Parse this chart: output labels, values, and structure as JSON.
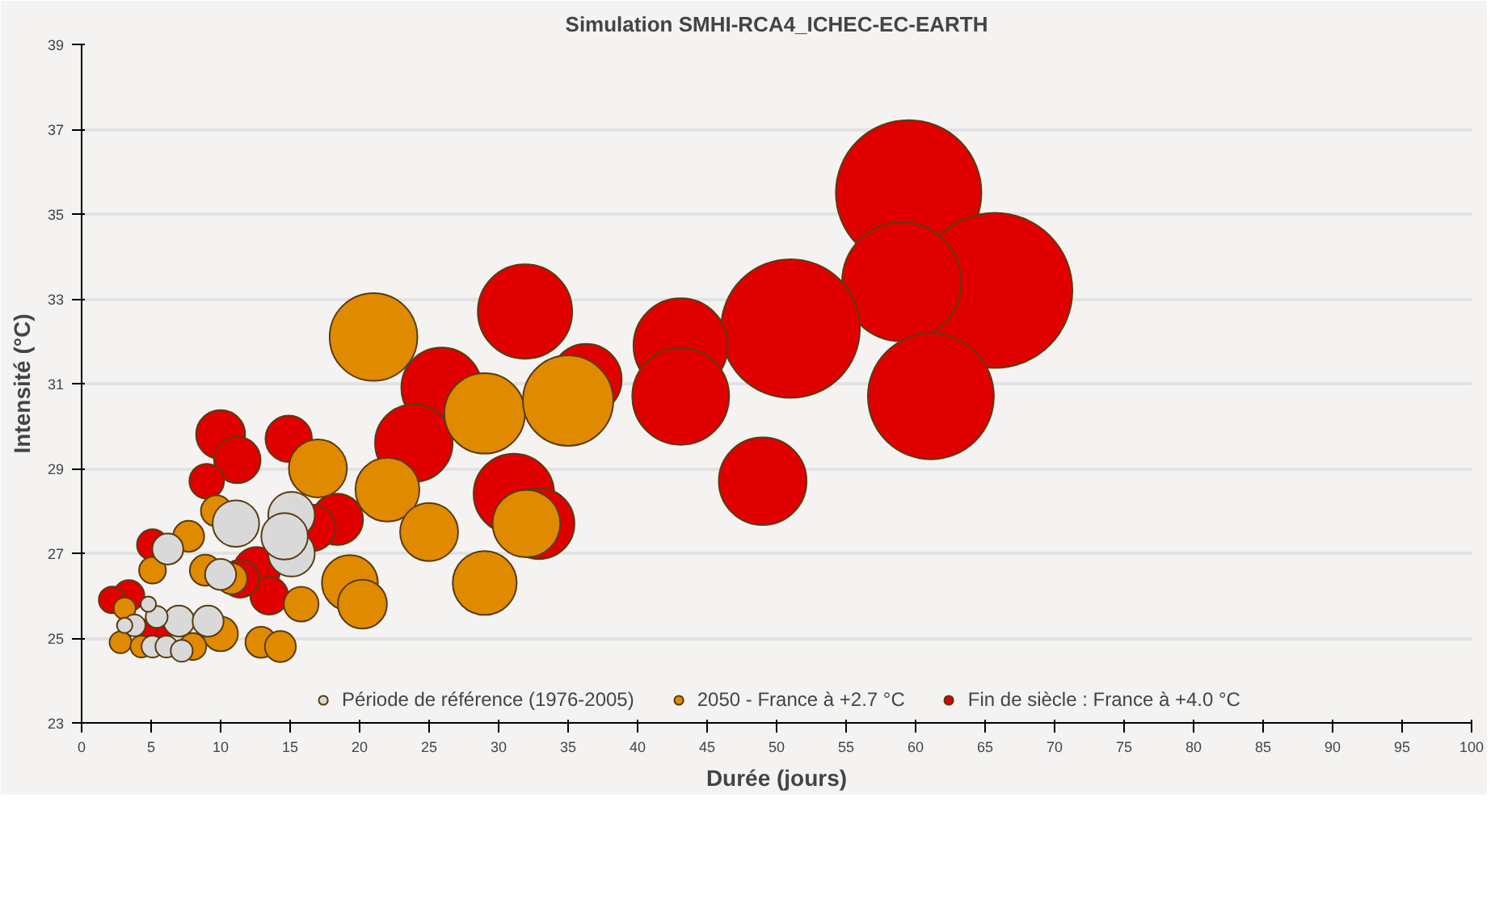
{
  "chart_data": {
    "type": "bubble",
    "title": "Simulation SMHI-RCA4_ICHEC-EC-EARTH",
    "xlabel": "Durée (jours)",
    "ylabel": "Intensité (°C)",
    "xlim": [
      0,
      100
    ],
    "xticks": [
      0,
      5,
      10,
      15,
      20,
      25,
      30,
      35,
      40,
      45,
      50,
      55,
      60,
      65,
      70,
      75,
      80,
      85,
      90,
      95,
      100
    ],
    "ylim": [
      23,
      39
    ],
    "yticks": [
      23,
      25,
      27,
      29,
      31,
      33,
      35,
      37,
      39
    ],
    "grid": "y",
    "legend": "bottom",
    "marker": "circle",
    "series": [
      {
        "name": "Période de référence (1976-2005)",
        "color": "#d9d9d9",
        "x": [
          15.1,
          15.1,
          14.6,
          11.1,
          6.2,
          10,
          7,
          9.1,
          5.4,
          3.8,
          3.1,
          5.1,
          6.1,
          7.2,
          4.8
        ],
        "values": [
          27.9,
          27,
          27.4,
          27.7,
          27.1,
          26.5,
          25.4,
          25.4,
          25.5,
          25.3,
          25.3,
          24.8,
          24.8,
          24.7,
          25.8
        ],
        "sizes": [
          0.09,
          0.09,
          0.09,
          0.09,
          0.04,
          0.04,
          0.04,
          0.04,
          0.02,
          0.02,
          0.01,
          0.02,
          0.02,
          0.02,
          0.01
        ]
      },
      {
        "name": "2050 - France à +2.7 °C",
        "color": "#e08a00",
        "x": [
          21,
          29,
          35,
          17,
          22,
          25,
          32,
          29,
          19.3,
          20.2,
          15.8,
          12.9,
          14.3,
          10,
          7.7,
          9.7,
          5.1,
          10.8,
          3.1,
          2.8,
          4.3,
          8,
          8.9
        ],
        "values": [
          32.1,
          30.3,
          30.6,
          29,
          28.5,
          27.5,
          27.7,
          26.3,
          26.3,
          25.8,
          25.8,
          24.9,
          24.8,
          25.1,
          27.4,
          28,
          26.6,
          26.4,
          25.7,
          24.9,
          24.8,
          24.8,
          26.6
        ],
        "sizes": [
          0.32,
          0.27,
          0.34,
          0.14,
          0.17,
          0.14,
          0.19,
          0.17,
          0.13,
          0.1,
          0.05,
          0.04,
          0.04,
          0.05,
          0.04,
          0.04,
          0.03,
          0.04,
          0.02,
          0.02,
          0.02,
          0.03,
          0.04
        ]
      },
      {
        "name": "Fin de siècle : France à +4.0 °C",
        "color": "#e00000",
        "x": [
          59.5,
          65.7,
          59,
          51,
          61.1,
          43.1,
          43.1,
          49,
          31.9,
          36.3,
          25.9,
          23.9,
          31.1,
          32.9,
          10,
          11.2,
          14.9,
          9,
          18.4,
          16.6,
          12.6,
          5.1,
          3.4,
          2.2,
          13.5,
          11.4,
          5.4
        ],
        "values": [
          35.5,
          33.2,
          33.4,
          32.3,
          30.7,
          31.9,
          30.7,
          28.7,
          32.7,
          31.1,
          30.9,
          29.6,
          28.4,
          27.7,
          29.8,
          29.2,
          29.7,
          28.7,
          27.8,
          27.6,
          26.6,
          27.2,
          26,
          25.9,
          26,
          26.4,
          25.2
        ],
        "sizes": [
          0.88,
          1,
          0.59,
          0.8,
          0.66,
          0.37,
          0.39,
          0.32,
          0.37,
          0.21,
          0.27,
          0.25,
          0.27,
          0.21,
          0.1,
          0.09,
          0.09,
          0.05,
          0.11,
          0.09,
          0.09,
          0.04,
          0.04,
          0.03,
          0.06,
          0.06,
          0.04
        ]
      }
    ]
  }
}
